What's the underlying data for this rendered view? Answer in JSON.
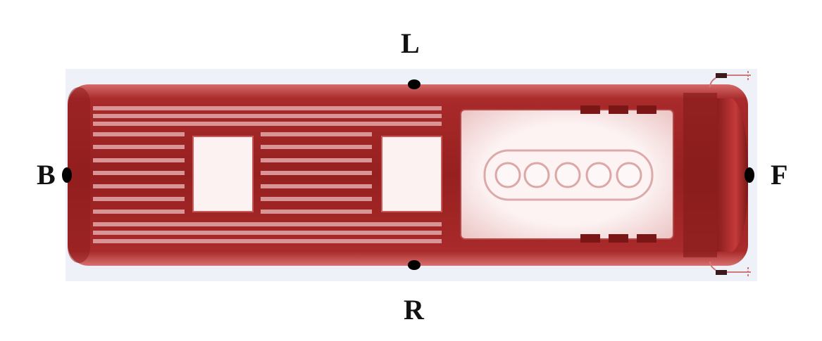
{
  "labels": {
    "left": "L",
    "right": "R",
    "back": "B",
    "front": "F"
  },
  "colors": {
    "background_panel": "#eef1f8",
    "body_dark": "#7e1a1a",
    "body_mid": "#a82828",
    "body_light": "#cf5a5a",
    "panel_light": "#fbeeee",
    "marker": "#000000"
  },
  "vehicle": {
    "kind": "locomotive-top-view",
    "left_vent_slat_count": 15,
    "roof_hatch_count": 2,
    "engine_circle_count": 5,
    "side_tab_count": 6
  }
}
